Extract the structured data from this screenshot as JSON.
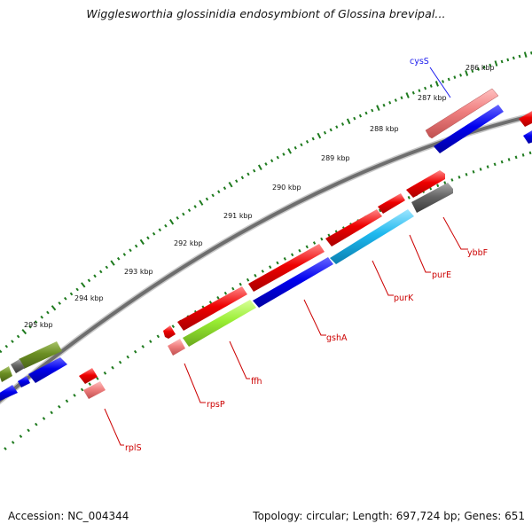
{
  "title": "Wigglesworthia glossinidia endosymbiont of Glossina brevipal...",
  "footer": {
    "accession": "Accession: NC_004344",
    "summary": "Topology: circular; Length: 697,724 bp; Genes: 651"
  },
  "colors": {
    "backbone": "#7a7a7a",
    "tick": "#1e7a1e",
    "gene_label_forward": "#cc0000",
    "gene_label_cyss": "#1a1aee",
    "red": "#f00000",
    "pink": "#f08080",
    "blue": "#0000ee",
    "cyan": "#1eb8ee",
    "lime": "#99ee33",
    "olive": "#6b8e23",
    "gray": "#666666"
  },
  "ruler": {
    "tick_labels": [
      "286 kbp",
      "287 kbp",
      "288 kbp",
      "289 kbp",
      "290 kbp",
      "291 kbp",
      "292 kbp",
      "293 kbp",
      "294 kbp",
      "295 kbp"
    ]
  },
  "gene_labels": [
    "cysS",
    "ybbF",
    "purE",
    "purK",
    "gshA",
    "ffh",
    "rpsP",
    "rplS"
  ]
}
